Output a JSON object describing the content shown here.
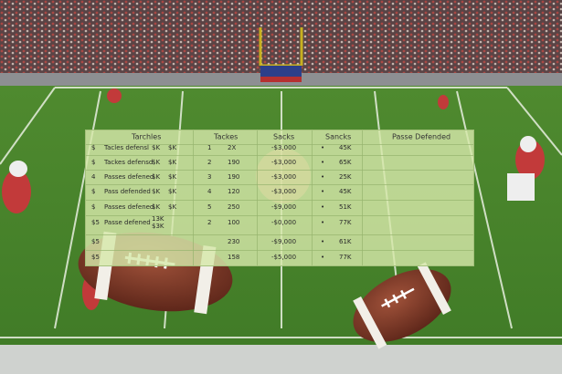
{
  "table": {
    "header": [
      "Tarchles",
      "Tackes",
      "Sacks",
      "Sancks",
      "Passe Defended"
    ],
    "rows": [
      [
        "$",
        "Tacles defensl",
        "$K",
        "$K",
        "1",
        "2X",
        "-$3,000",
        "•",
        "45K"
      ],
      [
        "$",
        "Tackes defensd",
        "$K",
        "$K",
        "2",
        "190",
        "-$3,000",
        "•",
        "65K"
      ],
      [
        "4",
        "Passes defened",
        "$K",
        "$K",
        "3",
        "190",
        "-$3,000",
        "•",
        "25K"
      ],
      [
        "$",
        "Pass defended",
        "$K",
        "$K",
        "4",
        "120",
        "-$3,000",
        "•",
        "45K"
      ],
      [
        "$",
        "Passes defened",
        "$K",
        "$K",
        "5",
        "250",
        "-$9,000",
        "•",
        "51K"
      ],
      [
        "$5",
        "Passe defened",
        "13K",
        "$3K",
        "2",
        "100",
        "-$0,000",
        "•",
        "77K"
      ],
      [
        "$5",
        null,
        null,
        null,
        null,
        "230",
        "-$9,000",
        "•",
        "61K"
      ],
      [
        "$5",
        null,
        null,
        null,
        null,
        "158",
        "-$5,000",
        "•",
        "77K"
      ]
    ]
  }
}
